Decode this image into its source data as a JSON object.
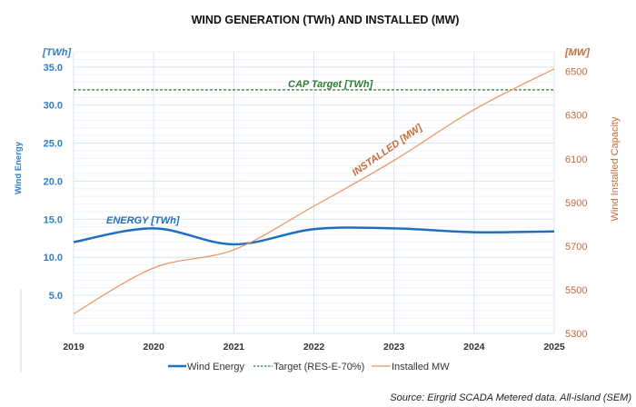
{
  "chart_data": {
    "type": "line",
    "title": "WIND GENERATION (TWh) AND INSTALLED (MW)",
    "x": [
      2019,
      2020,
      2021,
      2022,
      2023,
      2024,
      2025
    ],
    "x_tick_labels": [
      "2019",
      "2020",
      "2021",
      "2022",
      "2023",
      "2024",
      "2025"
    ],
    "y_left": {
      "label": "Wind Energy",
      "unit": "[TWh]",
      "lim": [
        0,
        37
      ],
      "ticks": [
        "5.0",
        "10.0",
        "15.0",
        "20.0",
        "25.0",
        "30.0",
        "35.0"
      ],
      "tick_values": [
        5,
        10,
        15,
        20,
        25,
        30,
        35
      ]
    },
    "y_right": {
      "label": "Wind Installed Capacity",
      "unit": "[MW]",
      "lim": [
        5300,
        6590
      ],
      "ticks": [
        "5300",
        "5500",
        "5700",
        "5900",
        "6100",
        "6300",
        "6500"
      ],
      "tick_values": [
        5300,
        5500,
        5700,
        5900,
        6100,
        6300,
        6500
      ]
    },
    "grid": true,
    "legend_position": "bottom",
    "series": [
      {
        "name": "Wind Energy",
        "axis": "left",
        "color": "#1f6fc0",
        "style": "solid-thick",
        "values": [
          12.0,
          13.8,
          11.7,
          13.7,
          13.8,
          13.3,
          13.4
        ]
      },
      {
        "name": "Target (RES-E-70%)",
        "axis": "left",
        "color": "#2e7d32",
        "style": "dashed",
        "values": [
          32.0,
          32.0,
          32.0,
          32.0,
          32.0,
          32.0,
          32.0
        ]
      },
      {
        "name": "Installed MW",
        "axis": "right",
        "color": "#f0915a",
        "style": "solid-thin",
        "values": [
          5390,
          5600,
          5683,
          5883,
          6092,
          6325,
          6512
        ]
      }
    ],
    "annotations": {
      "target": "CAP Target [TWh]",
      "energy": "ENERGY [TWh]",
      "installed": "INSTALLED [MW]"
    },
    "source": "Source: Eirgrid SCADA Metered data. All-island (SEM)"
  }
}
